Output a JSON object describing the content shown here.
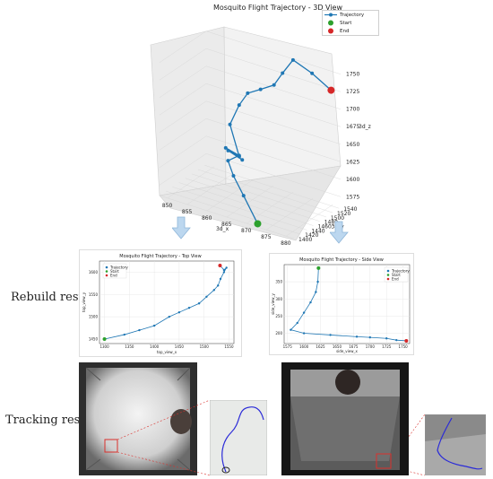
{
  "figure": {
    "rebuild_label": "Rebuild results",
    "tracking_label": "Tracking results"
  },
  "chart_data": [
    {
      "type": "line",
      "title": "Mosquito Flight Trajectory - 3D View",
      "xlabel": "3d_x",
      "ylabel": "3d_y",
      "zlabel": "3d_z",
      "x_ticks": [
        "850",
        "855",
        "860",
        "865",
        "870",
        "875",
        "880"
      ],
      "y_ticks": [
        "1400",
        "1420",
        "1440",
        "1460",
        "1480",
        "1500",
        "1520",
        "1540"
      ],
      "z_ticks": [
        "1575",
        "1600",
        "1625",
        "1650",
        "1675",
        "1700",
        "1725",
        "1750"
      ],
      "legend": [
        "Trajectory",
        "Start",
        "End"
      ],
      "colors": {
        "trajectory": "#1f77b4",
        "start": "#2ca02c",
        "end": "#d62728"
      },
      "series": [
        {
          "name": "Trajectory",
          "points_xyz": [
            [
              872,
              1410,
              1560
            ],
            [
              866,
              1440,
              1580
            ],
            [
              861,
              1470,
              1590
            ],
            [
              858,
              1490,
              1600
            ],
            [
              860,
              1500,
              1608
            ],
            [
              857,
              1495,
              1615
            ],
            [
              862,
              1485,
              1610
            ],
            [
              859,
              1478,
              1620
            ],
            [
              861,
              1488,
              1612
            ],
            [
              858,
              1496,
              1650
            ],
            [
              860,
              1500,
              1680
            ],
            [
              862,
              1502,
              1700
            ],
            [
              865,
              1505,
              1710
            ],
            [
              868,
              1510,
              1720
            ],
            [
              870,
              1512,
              1740
            ],
            [
              872,
              1520,
              1760
            ],
            [
              876,
              1530,
              1745
            ],
            [
              880,
              1540,
              1725
            ]
          ]
        }
      ]
    },
    {
      "type": "line",
      "title": "Mosquito Flight Trajectory - Top View",
      "xlabel": "top_view_x",
      "ylabel": "top_view_y",
      "x_ticks": [
        "1300",
        "1350",
        "1400",
        "1450",
        "1500",
        "1550"
      ],
      "y_ticks": [
        "1450",
        "1500",
        "1550",
        "1600"
      ],
      "legend": [
        "Trajectory",
        "Start",
        "End"
      ],
      "series": [
        {
          "name": "Trajectory",
          "x": [
            1300,
            1340,
            1370,
            1400,
            1430,
            1450,
            1470,
            1490,
            1505,
            1520,
            1528,
            1533,
            1540,
            1545,
            1540,
            1532
          ],
          "y": [
            1450,
            1460,
            1470,
            1480,
            1500,
            1510,
            1520,
            1530,
            1545,
            1560,
            1570,
            1585,
            1600,
            1610,
            1605,
            1615
          ]
        }
      ]
    },
    {
      "type": "line",
      "title": "Mosquito Flight Trajectory - Side View",
      "xlabel": "side_view_x",
      "ylabel": "side_view_y",
      "x_ticks": [
        "1575",
        "1600",
        "1625",
        "1650",
        "1675",
        "1700",
        "1725",
        "1750"
      ],
      "y_ticks": [
        "200",
        "250",
        "300",
        "350"
      ],
      "legend": [
        "Trajectory",
        "Start",
        "End"
      ],
      "series": [
        {
          "name": "Trajectory",
          "x": [
            1622,
            1621,
            1618,
            1610,
            1600,
            1590,
            1580,
            1600,
            1640,
            1680,
            1700,
            1725,
            1740,
            1755
          ],
          "y": [
            390,
            350,
            320,
            290,
            260,
            230,
            210,
            200,
            195,
            190,
            188,
            185,
            180,
            178
          ]
        }
      ]
    }
  ]
}
